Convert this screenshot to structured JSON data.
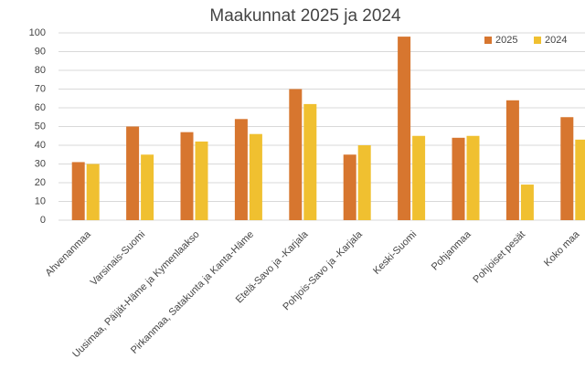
{
  "chart_data": {
    "type": "bar",
    "title": "Maakunnat 2025 ja 2024",
    "categories": [
      "Ahvenanmaa",
      "Varsinais-Suomi",
      "Uusimaa, Päijät-Häme ja Kymenlaakso",
      "Pirkanmaa, Satakunta ja Kanta-Häme",
      "Etelä-Savo ja -Karjala",
      "Pohjois-Savo ja -Karjala",
      "Keski-Suomi",
      "Pohjanmaa",
      "Pohjoiset pesät",
      "Koko maa"
    ],
    "series": [
      {
        "name": "2025",
        "color": "#d7762f",
        "values": [
          31,
          50,
          47,
          54,
          70,
          35,
          98,
          44,
          64,
          55
        ]
      },
      {
        "name": "2024",
        "color": "#f0c030",
        "values": [
          30,
          35,
          42,
          46,
          62,
          40,
          45,
          45,
          19,
          43
        ]
      }
    ],
    "ylim": [
      0,
      100
    ],
    "yticks": [
      0,
      10,
      20,
      30,
      40,
      50,
      60,
      70,
      80,
      90,
      100
    ],
    "grid": true,
    "legend": "top-right"
  }
}
